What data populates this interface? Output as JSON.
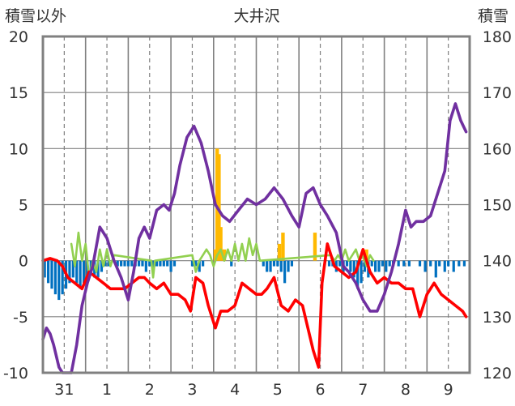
{
  "chart_data": {
    "type": "bar+line",
    "title": "大井沢",
    "left_axis_label": "積雪以外",
    "right_axis_label": "積雪",
    "left_ylim": [
      -10,
      20
    ],
    "right_ylim": [
      120,
      180
    ],
    "left_ticks": [
      "20",
      "15",
      "10",
      "5",
      "0",
      "-5",
      "-10"
    ],
    "right_ticks": [
      "180",
      "170",
      "160",
      "150",
      "140",
      "130",
      "120"
    ],
    "x_tick_labels": [
      "31",
      "1",
      "2",
      "3",
      "4",
      "5",
      "6",
      "7",
      "8",
      "9"
    ],
    "x_range_days": [
      -0.5,
      9.5
    ],
    "grid": true,
    "colors": {
      "snow_depth": "#7030a0",
      "temperature": "#ff0000",
      "precip": "#ffb900",
      "sunshine": "#92d050",
      "snow_change": "#0070c0"
    },
    "series": {
      "snow_depth_cm": [
        [
          0,
          126
        ],
        [
          0.1,
          128
        ],
        [
          0.2,
          127
        ],
        [
          0.3,
          125
        ],
        [
          0.45,
          121
        ],
        [
          0.55,
          120
        ],
        [
          0.8,
          120
        ],
        [
          0.95,
          125
        ],
        [
          1.1,
          132
        ],
        [
          1.25,
          136
        ],
        [
          1.4,
          139
        ],
        [
          1.6,
          146
        ],
        [
          1.8,
          144
        ],
        [
          2.0,
          140
        ],
        [
          2.2,
          137
        ],
        [
          2.4,
          133
        ],
        [
          2.55,
          138
        ],
        [
          2.7,
          144
        ],
        [
          2.85,
          146
        ],
        [
          3.0,
          144
        ],
        [
          3.2,
          149
        ],
        [
          3.4,
          150
        ],
        [
          3.55,
          149
        ],
        [
          3.7,
          152
        ],
        [
          3.85,
          157
        ],
        [
          4.05,
          162
        ],
        [
          4.25,
          164
        ],
        [
          4.45,
          161
        ],
        [
          4.65,
          156
        ],
        [
          4.85,
          150
        ],
        [
          5.05,
          148
        ],
        [
          5.25,
          147
        ],
        [
          5.5,
          149
        ],
        [
          5.75,
          151
        ],
        [
          6.0,
          150
        ],
        [
          6.25,
          151
        ],
        [
          6.5,
          153
        ],
        [
          6.75,
          151
        ],
        [
          7.0,
          148
        ],
        [
          7.2,
          146
        ],
        [
          7.4,
          152
        ],
        [
          7.6,
          153
        ],
        [
          7.8,
          150
        ],
        [
          8.0,
          148
        ],
        [
          8.25,
          145
        ],
        [
          8.45,
          139
        ],
        [
          8.6,
          138
        ],
        [
          8.8,
          136
        ],
        [
          9.0,
          133
        ],
        [
          9.2,
          131
        ],
        [
          9.4,
          131
        ],
        [
          9.6,
          134
        ],
        [
          9.8,
          138
        ],
        [
          10.0,
          143
        ],
        [
          10.2,
          149
        ],
        [
          10.35,
          146
        ],
        [
          10.5,
          147
        ],
        [
          10.7,
          147
        ],
        [
          10.9,
          148
        ],
        [
          11.1,
          152
        ],
        [
          11.3,
          156
        ],
        [
          11.45,
          165
        ],
        [
          11.6,
          168
        ],
        [
          11.75,
          165
        ],
        [
          11.9,
          163
        ]
      ],
      "temperature": [
        [
          0,
          0
        ],
        [
          0.2,
          0.2
        ],
        [
          0.4,
          0
        ],
        [
          0.55,
          -0.5
        ],
        [
          0.7,
          -1.5
        ],
        [
          0.9,
          -2
        ],
        [
          1.1,
          -2.5
        ],
        [
          1.3,
          -1
        ],
        [
          1.5,
          -1.5
        ],
        [
          1.7,
          -2
        ],
        [
          1.9,
          -2.5
        ],
        [
          2.1,
          -2.5
        ],
        [
          2.3,
          -2.5
        ],
        [
          2.5,
          -2
        ],
        [
          2.7,
          -1.5
        ],
        [
          2.85,
          -1.5
        ],
        [
          3.0,
          -2
        ],
        [
          3.2,
          -2.5
        ],
        [
          3.4,
          -2
        ],
        [
          3.6,
          -3
        ],
        [
          3.8,
          -3
        ],
        [
          4.0,
          -3.5
        ],
        [
          4.15,
          -4.5
        ],
        [
          4.3,
          -1.5
        ],
        [
          4.5,
          -2
        ],
        [
          4.65,
          -4
        ],
        [
          4.85,
          -6
        ],
        [
          5.0,
          -4.5
        ],
        [
          5.2,
          -4.5
        ],
        [
          5.4,
          -4
        ],
        [
          5.6,
          -2
        ],
        [
          5.8,
          -2.5
        ],
        [
          6.0,
          -3
        ],
        [
          6.15,
          -3
        ],
        [
          6.3,
          -2.5
        ],
        [
          6.5,
          -1.5
        ],
        [
          6.7,
          -4
        ],
        [
          6.9,
          -4.5
        ],
        [
          7.1,
          -3.5
        ],
        [
          7.3,
          -4
        ],
        [
          7.45,
          -6
        ],
        [
          7.6,
          -8
        ],
        [
          7.75,
          -9.5
        ],
        [
          7.85,
          -2
        ],
        [
          8.0,
          1.5
        ],
        [
          8.2,
          -0.5
        ],
        [
          8.4,
          -1
        ],
        [
          8.6,
          -1.5
        ],
        [
          8.8,
          -1
        ],
        [
          9.0,
          1
        ],
        [
          9.2,
          -1
        ],
        [
          9.4,
          -2
        ],
        [
          9.6,
          -1.5
        ],
        [
          9.8,
          -2
        ],
        [
          10.0,
          -2
        ],
        [
          10.2,
          -2.5
        ],
        [
          10.4,
          -2.5
        ],
        [
          10.6,
          -5
        ],
        [
          10.8,
          -3
        ],
        [
          11.0,
          -2
        ],
        [
          11.2,
          -3
        ],
        [
          11.4,
          -3.5
        ],
        [
          11.6,
          -4
        ],
        [
          11.8,
          -4.5
        ],
        [
          11.9,
          -5
        ]
      ],
      "sunshine": [
        [
          0.8,
          1.5
        ],
        [
          0.9,
          -0.5
        ],
        [
          1.0,
          2.5
        ],
        [
          1.1,
          0
        ],
        [
          1.2,
          1.5
        ],
        [
          1.3,
          -1.5
        ],
        [
          1.4,
          0
        ],
        [
          1.5,
          -1
        ],
        [
          1.6,
          1
        ],
        [
          1.7,
          -0.5
        ],
        [
          1.8,
          1
        ],
        [
          1.9,
          -0.5
        ],
        [
          2.0,
          0.5
        ],
        [
          3.05,
          0
        ],
        [
          3.1,
          -1.5
        ],
        [
          3.15,
          0
        ],
        [
          4.2,
          0.5
        ],
        [
          4.3,
          -1
        ],
        [
          4.4,
          0
        ],
        [
          4.5,
          0.5
        ],
        [
          4.6,
          1
        ],
        [
          4.7,
          0.5
        ],
        [
          4.8,
          -0.5
        ],
        [
          4.9,
          0.5
        ],
        [
          5.0,
          1
        ],
        [
          5.1,
          0
        ],
        [
          5.2,
          1
        ],
        [
          5.3,
          0
        ],
        [
          5.4,
          1.5
        ],
        [
          5.5,
          0
        ],
        [
          5.6,
          1.5
        ],
        [
          5.7,
          0
        ],
        [
          5.8,
          2
        ],
        [
          5.9,
          0.5
        ],
        [
          6.0,
          1.5
        ],
        [
          6.1,
          0
        ],
        [
          8.1,
          0.5
        ],
        [
          8.2,
          0
        ],
        [
          8.3,
          0.5
        ],
        [
          8.4,
          0
        ],
        [
          8.5,
          1
        ],
        [
          8.6,
          0
        ],
        [
          8.7,
          0.5
        ],
        [
          8.8,
          1
        ],
        [
          8.9,
          0
        ],
        [
          9.0,
          0.5
        ],
        [
          9.1,
          -0.5
        ],
        [
          9.2,
          0.5
        ],
        [
          9.3,
          0
        ]
      ],
      "precipitation": [
        [
          4.85,
          1
        ],
        [
          4.9,
          10
        ],
        [
          4.95,
          9.5
        ],
        [
          5.0,
          3
        ],
        [
          5.05,
          1
        ],
        [
          5.1,
          1
        ],
        [
          6.65,
          1.5
        ],
        [
          6.75,
          2.5
        ],
        [
          7.65,
          2.5
        ],
        [
          9.05,
          0.5
        ],
        [
          9.1,
          1
        ]
      ],
      "snow_change": [
        [
          0.05,
          -1.5
        ],
        [
          0.15,
          -2
        ],
        [
          0.25,
          -2.5
        ],
        [
          0.35,
          -3
        ],
        [
          0.45,
          -3.5
        ],
        [
          0.55,
          -3
        ],
        [
          0.65,
          -2.5
        ],
        [
          0.75,
          -2
        ],
        [
          0.85,
          -1.5
        ],
        [
          0.95,
          -2
        ],
        [
          1.05,
          -2.5
        ],
        [
          1.15,
          -2
        ],
        [
          1.25,
          -1.5
        ],
        [
          1.35,
          -1
        ],
        [
          1.45,
          -1.5
        ],
        [
          1.55,
          -1.5
        ],
        [
          1.65,
          -1
        ],
        [
          1.75,
          -0.5
        ],
        [
          1.85,
          -0.5
        ],
        [
          2.1,
          -0.5
        ],
        [
          2.2,
          -0.5
        ],
        [
          2.3,
          -0.5
        ],
        [
          2.4,
          -0.5
        ],
        [
          2.5,
          -0.5
        ],
        [
          2.6,
          -0.5
        ],
        [
          2.7,
          -0.5
        ],
        [
          2.8,
          -0.5
        ],
        [
          2.9,
          -1
        ],
        [
          3.0,
          -0.5
        ],
        [
          3.1,
          -1
        ],
        [
          3.2,
          -0.5
        ],
        [
          3.3,
          -0.5
        ],
        [
          3.4,
          -0.5
        ],
        [
          3.5,
          -0.5
        ],
        [
          3.6,
          -1
        ],
        [
          3.7,
          -0.5
        ],
        [
          4.2,
          -0.5
        ],
        [
          4.3,
          -0.5
        ],
        [
          4.4,
          -1
        ],
        [
          4.5,
          -0.5
        ],
        [
          5.3,
          -0.5
        ],
        [
          6.2,
          -0.5
        ],
        [
          6.3,
          -1
        ],
        [
          6.4,
          -1
        ],
        [
          6.5,
          -0.5
        ],
        [
          6.6,
          -0.5
        ],
        [
          6.7,
          -1
        ],
        [
          6.8,
          -2
        ],
        [
          6.9,
          -1
        ],
        [
          7.0,
          -0.5
        ],
        [
          8.05,
          -0.5
        ],
        [
          8.15,
          -0.5
        ],
        [
          8.25,
          -1
        ],
        [
          8.35,
          -0.5
        ],
        [
          8.45,
          -1
        ],
        [
          8.55,
          -0.5
        ],
        [
          8.65,
          -1
        ],
        [
          8.75,
          -1.5
        ],
        [
          8.85,
          -2.5
        ],
        [
          8.95,
          -2
        ],
        [
          9.05,
          -1
        ],
        [
          9.15,
          -1.5
        ],
        [
          9.25,
          -0.5
        ],
        [
          9.35,
          -1
        ],
        [
          9.45,
          -1
        ],
        [
          9.55,
          -0.5
        ],
        [
          9.65,
          -1
        ],
        [
          9.75,
          -0.5
        ],
        [
          9.85,
          -0.5
        ],
        [
          10.0,
          -0.5
        ],
        [
          10.15,
          -0.5
        ],
        [
          10.3,
          -0.5
        ],
        [
          10.6,
          -0.5
        ],
        [
          10.75,
          -1
        ],
        [
          10.9,
          -0.5
        ],
        [
          11.05,
          -1.5
        ],
        [
          11.15,
          -0.5
        ],
        [
          11.3,
          -1
        ],
        [
          11.4,
          -0.5
        ],
        [
          11.55,
          -1
        ],
        [
          11.7,
          -0.5
        ],
        [
          11.85,
          -0.5
        ]
      ]
    }
  }
}
